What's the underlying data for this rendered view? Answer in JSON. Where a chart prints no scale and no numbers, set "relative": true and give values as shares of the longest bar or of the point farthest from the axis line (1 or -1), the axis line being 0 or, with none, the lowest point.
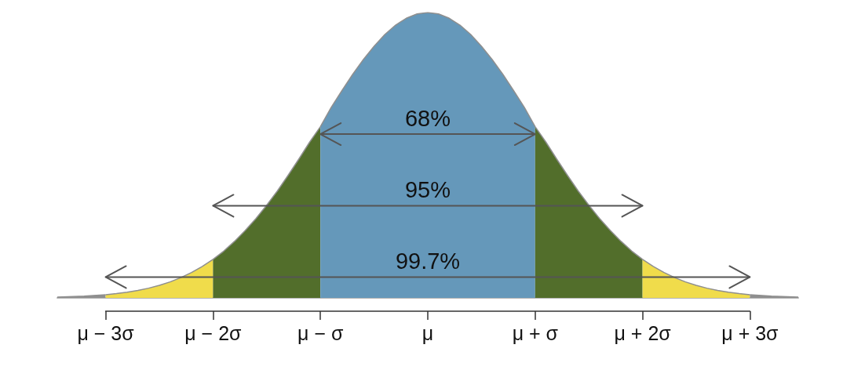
{
  "chart_data": {
    "type": "area",
    "relative": true,
    "xlim": [
      -3.45,
      3.45
    ],
    "xticks": [
      {
        "value": -3,
        "label": "μ − 3σ"
      },
      {
        "value": -2,
        "label": "μ − 2σ"
      },
      {
        "value": -1,
        "label": "μ − σ"
      },
      {
        "value": 0,
        "label": "μ"
      },
      {
        "value": 1,
        "label": "μ + σ"
      },
      {
        "value": 2,
        "label": "μ + 2σ"
      },
      {
        "value": 3,
        "label": "μ + 3σ"
      }
    ],
    "series": [
      {
        "color": "#8f8f8f",
        "x": [
          -3.45,
          -3.2,
          -3
        ],
        "values": [
          0.003,
          0.006,
          0.011
        ]
      },
      {
        "color": "#f0dc4b",
        "x": [
          -3,
          -2.9,
          -2.8,
          -2.7,
          -2.6,
          -2.5,
          -2.4,
          -2.3,
          -2.2,
          -2.1,
          -2
        ],
        "values": [
          0.011,
          0.015,
          0.02,
          0.026,
          0.034,
          0.044,
          0.056,
          0.071,
          0.089,
          0.11,
          0.135
        ]
      },
      {
        "color": "#526e2b",
        "x": [
          -2,
          -1.9,
          -1.8,
          -1.7,
          -1.6,
          -1.5,
          -1.4,
          -1.3,
          -1.2,
          -1.1,
          -1
        ],
        "values": [
          0.135,
          0.164,
          0.198,
          0.236,
          0.278,
          0.325,
          0.375,
          0.43,
          0.487,
          0.546,
          0.6
        ]
      },
      {
        "color": "#6598ba",
        "x": [
          -1,
          -0.9,
          -0.8,
          -0.7,
          -0.6,
          -0.5,
          -0.4,
          -0.3,
          -0.2,
          -0.1,
          0,
          0.1,
          0.2,
          0.3,
          0.4,
          0.5,
          0.6,
          0.7,
          0.8,
          0.9,
          1
        ],
        "values": [
          0.6,
          0.667,
          0.726,
          0.783,
          0.835,
          0.882,
          0.923,
          0.956,
          0.98,
          0.995,
          1,
          0.995,
          0.98,
          0.956,
          0.923,
          0.882,
          0.835,
          0.783,
          0.726,
          0.667,
          0.6
        ]
      },
      {
        "color": "#526e2b",
        "x": [
          1,
          1.1,
          1.2,
          1.3,
          1.4,
          1.5,
          1.6,
          1.7,
          1.8,
          1.9,
          2
        ],
        "values": [
          0.6,
          0.546,
          0.487,
          0.43,
          0.375,
          0.325,
          0.278,
          0.236,
          0.198,
          0.164,
          0.135
        ]
      },
      {
        "color": "#f0dc4b",
        "x": [
          2,
          2.1,
          2.2,
          2.3,
          2.4,
          2.5,
          2.6,
          2.7,
          2.8,
          2.9,
          3
        ],
        "values": [
          0.135,
          0.11,
          0.089,
          0.071,
          0.056,
          0.044,
          0.034,
          0.026,
          0.02,
          0.015,
          0.011
        ]
      },
      {
        "color": "#8f8f8f",
        "x": [
          3,
          3.2,
          3.45
        ],
        "values": [
          0.011,
          0.006,
          0.003
        ]
      },
      {
        "type": "line",
        "name": "68%",
        "color": "#555555",
        "x": [
          -1,
          1
        ],
        "values": [
          0.574,
          0.574
        ]
      },
      {
        "type": "line",
        "name": "95%",
        "color": "#555555",
        "x": [
          -2,
          2
        ],
        "values": [
          0.323,
          0.323
        ]
      },
      {
        "type": "line",
        "name": "99.7%",
        "color": "#555555",
        "x": [
          -3,
          3
        ],
        "values": [
          0.073,
          0.073
        ]
      }
    ]
  }
}
